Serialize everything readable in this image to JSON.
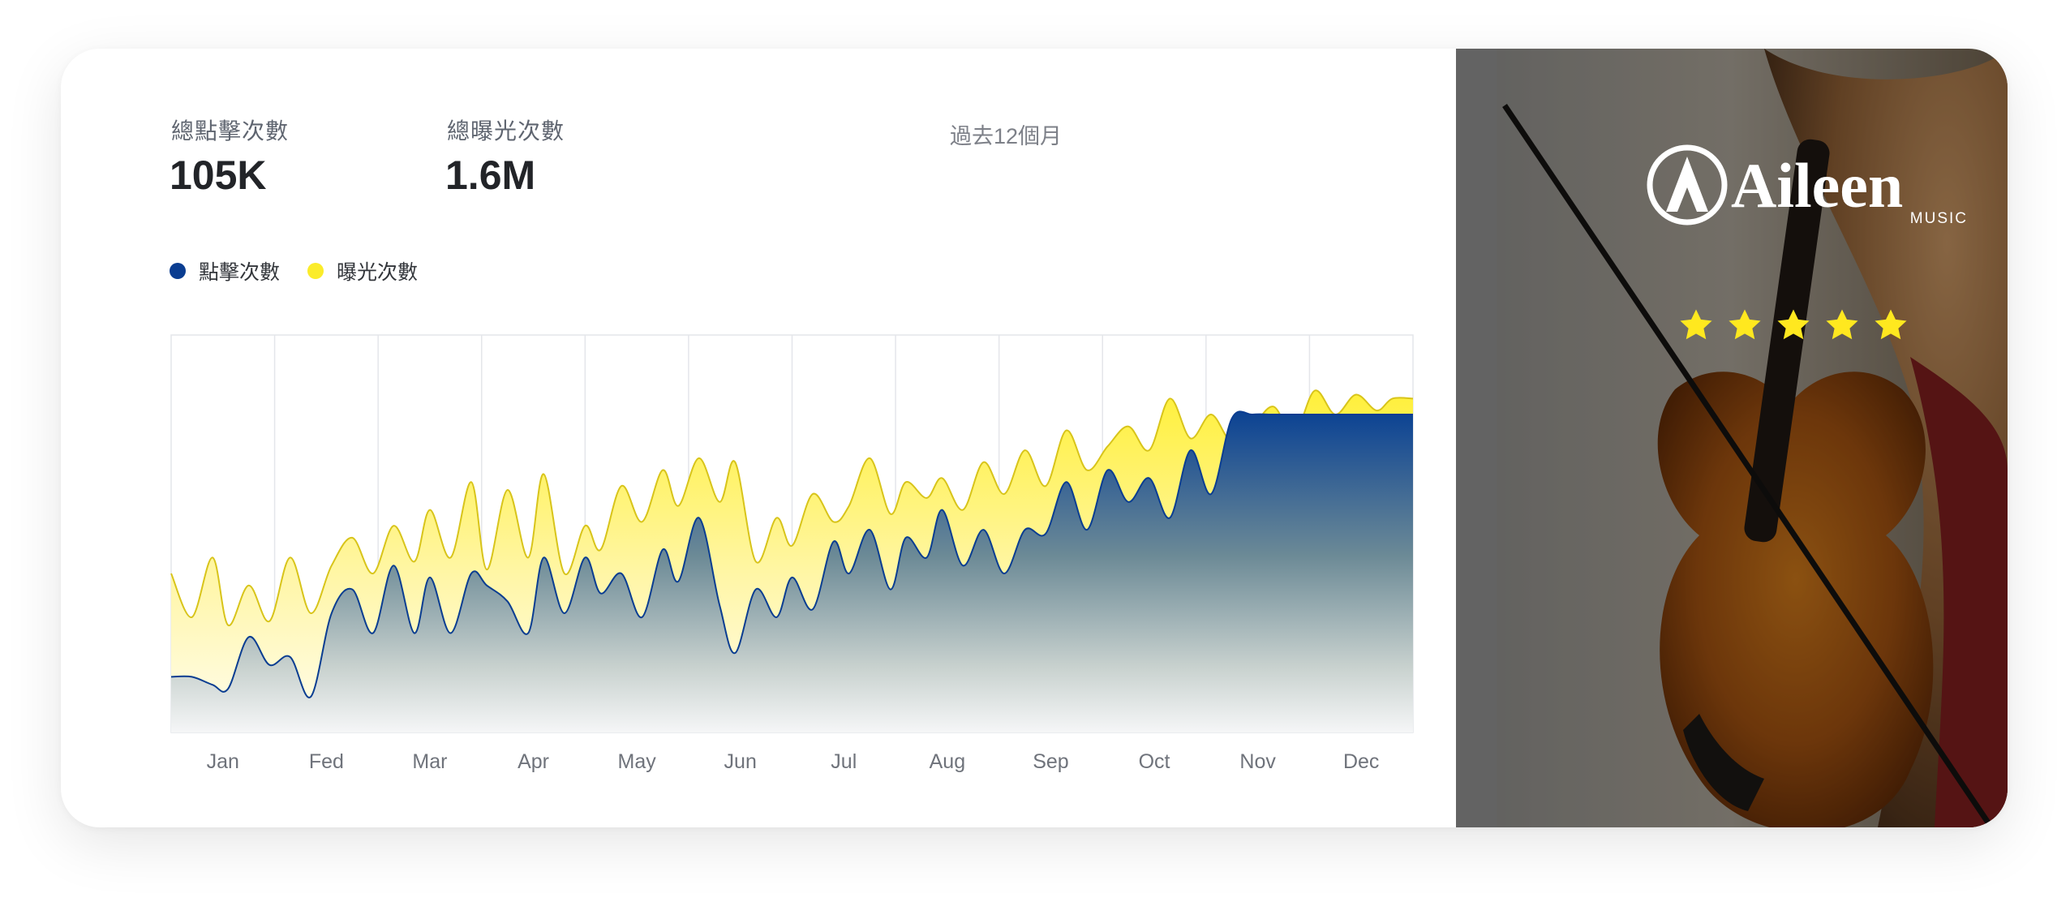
{
  "stats": {
    "clicks_label": "總點擊次數",
    "clicks_value": "105K",
    "impressions_label": "總曝光次數",
    "impressions_value": "1.6M",
    "period": "過去12個月"
  },
  "legend": [
    {
      "label": "點擊次數",
      "color": "#0a3d91"
    },
    {
      "label": "曝光次數",
      "color": "#fbec2a"
    }
  ],
  "brand": {
    "name": "Aileen",
    "sub": "MUSIC",
    "rating": 5,
    "star_color": "#ffe81f"
  },
  "chart_data": {
    "type": "area",
    "categories": [
      "Jan",
      "Fed",
      "Mar",
      "Apr",
      "May",
      "Jun",
      "Jul",
      "Aug",
      "Sep",
      "Oct",
      "Nov",
      "Dec"
    ],
    "ylim": [
      0,
      100
    ],
    "grid": true,
    "series": [
      {
        "name": "曝光次數",
        "color": "#fbec2a",
        "x": [
          0,
          0.2,
          0.4,
          0.55,
          0.75,
          0.95,
          1.15,
          1.35,
          1.55,
          1.75,
          1.95,
          2.15,
          2.35,
          2.5,
          2.7,
          2.9,
          3.05,
          3.25,
          3.45,
          3.6,
          3.8,
          4.0,
          4.15,
          4.35,
          4.55,
          4.75,
          4.9,
          5.1,
          5.3,
          5.45,
          5.65,
          5.85,
          6.0,
          6.2,
          6.4,
          6.55,
          6.75,
          6.95,
          7.1,
          7.3,
          7.45,
          7.65,
          7.85,
          8.05,
          8.25,
          8.45,
          8.65,
          8.85,
          9.05,
          9.25,
          9.45,
          9.65,
          9.85,
          10.05,
          10.25,
          10.45,
          10.65,
          10.85,
          11.05,
          11.25,
          11.45,
          11.65,
          11.8,
          12.0
        ],
        "values": [
          40,
          29,
          44,
          27,
          37,
          28,
          44,
          30,
          42,
          49,
          40,
          52,
          43,
          56,
          44,
          63,
          41,
          61,
          44,
          65,
          40,
          52,
          46,
          62,
          53,
          66,
          57,
          69,
          58,
          68,
          43,
          54,
          47,
          60,
          53,
          57,
          69,
          55,
          63,
          59,
          64,
          56,
          68,
          60,
          71,
          62,
          76,
          66,
          72,
          77,
          71,
          84,
          74,
          80,
          73,
          77,
          82,
          75,
          86,
          80,
          85,
          81,
          84,
          84
        ]
      },
      {
        "name": "點擊次數",
        "color": "#0a3d91",
        "x": [
          0,
          0.2,
          0.4,
          0.55,
          0.75,
          0.95,
          1.15,
          1.35,
          1.55,
          1.75,
          1.95,
          2.15,
          2.35,
          2.5,
          2.7,
          2.9,
          3.05,
          3.25,
          3.45,
          3.6,
          3.8,
          4.0,
          4.15,
          4.35,
          4.55,
          4.75,
          4.9,
          5.1,
          5.3,
          5.45,
          5.65,
          5.85,
          6.0,
          6.2,
          6.4,
          6.55,
          6.75,
          6.95,
          7.1,
          7.3,
          7.45,
          7.65,
          7.85,
          8.05,
          8.25,
          8.45,
          8.65,
          8.85,
          9.05,
          9.25,
          9.45,
          9.65,
          9.85,
          10.05,
          10.25,
          10.45,
          10.65,
          10.85,
          11.05,
          11.25,
          11.45,
          11.65,
          11.8,
          12.0
        ],
        "values": [
          14,
          14,
          12,
          11,
          24,
          17,
          19,
          9,
          30,
          36,
          25,
          42,
          25,
          39,
          25,
          40,
          37,
          33,
          25,
          44,
          30,
          44,
          35,
          40,
          29,
          46,
          38,
          54,
          32,
          20,
          36,
          29,
          39,
          31,
          48,
          40,
          51,
          36,
          49,
          44,
          56,
          42,
          51,
          40,
          51,
          50,
          63,
          51,
          66,
          58,
          64,
          54,
          71,
          60,
          79,
          80,
          80,
          80,
          80,
          80,
          80,
          80,
          80,
          80
        ]
      }
    ]
  }
}
